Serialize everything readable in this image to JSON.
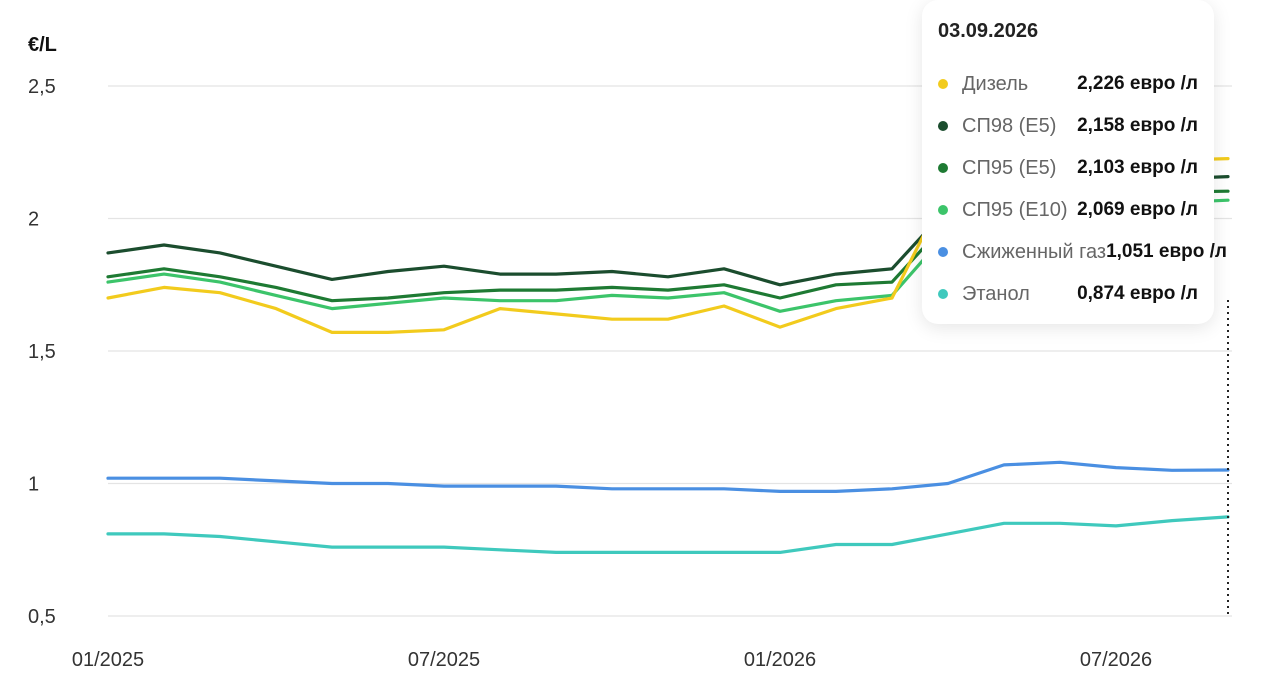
{
  "chart_data": {
    "type": "line",
    "unit_label": "€/L",
    "y_ticks": [
      "2,5",
      "2",
      "1,5",
      "1",
      "0,5"
    ],
    "ylim": [
      0.5,
      2.5
    ],
    "x_ticks": [
      "01/2025",
      "07/2025",
      "01/2026",
      "07/2026"
    ],
    "x": [
      "2025-01",
      "2025-02",
      "2025-03",
      "2025-04",
      "2025-05",
      "2025-06",
      "2025-07",
      "2025-08",
      "2025-09",
      "2025-10",
      "2025-11",
      "2025-12",
      "2026-01",
      "2026-02",
      "2026-03",
      "2026-04",
      "2026-05",
      "2026-06",
      "2026-07",
      "2026-08",
      "2026-09"
    ],
    "grid": true,
    "series": [
      {
        "name": "Дизель",
        "color": "#f2cb1d",
        "values": [
          1.7,
          1.74,
          1.72,
          1.66,
          1.57,
          1.57,
          1.58,
          1.66,
          1.64,
          1.62,
          1.62,
          1.67,
          1.59,
          1.66,
          1.7,
          2.12,
          2.18,
          2.2,
          2.21,
          2.22,
          2.226
        ]
      },
      {
        "name": "СП98 (E5)",
        "color": "#1b4d2e",
        "values": [
          1.87,
          1.9,
          1.87,
          1.82,
          1.77,
          1.8,
          1.82,
          1.79,
          1.79,
          1.8,
          1.78,
          1.81,
          1.75,
          1.79,
          1.81,
          2.04,
          2.1,
          2.13,
          2.14,
          2.15,
          2.158
        ]
      },
      {
        "name": "СП95 (E5)",
        "color": "#1e7a33",
        "values": [
          1.78,
          1.81,
          1.78,
          1.74,
          1.69,
          1.7,
          1.72,
          1.73,
          1.73,
          1.74,
          1.73,
          1.75,
          1.7,
          1.75,
          1.76,
          1.99,
          2.05,
          2.08,
          2.09,
          2.1,
          2.103
        ]
      },
      {
        "name": "СП95 (E10)",
        "color": "#3cc46a",
        "values": [
          1.76,
          1.79,
          1.76,
          1.71,
          1.66,
          1.68,
          1.7,
          1.69,
          1.69,
          1.71,
          1.7,
          1.72,
          1.65,
          1.69,
          1.71,
          1.95,
          2.01,
          2.04,
          2.05,
          2.06,
          2.069
        ]
      },
      {
        "name": "Сжиженный газ",
        "color": "#4a8fe2",
        "values": [
          1.02,
          1.02,
          1.02,
          1.01,
          1.0,
          1.0,
          0.99,
          0.99,
          0.99,
          0.98,
          0.98,
          0.98,
          0.97,
          0.97,
          0.98,
          1.0,
          1.07,
          1.08,
          1.06,
          1.05,
          1.051
        ]
      },
      {
        "name": "Этанол",
        "color": "#3fc9bd",
        "values": [
          0.81,
          0.81,
          0.8,
          0.78,
          0.76,
          0.76,
          0.76,
          0.75,
          0.74,
          0.74,
          0.74,
          0.74,
          0.74,
          0.77,
          0.77,
          0.81,
          0.85,
          0.85,
          0.84,
          0.86,
          0.874
        ]
      }
    ],
    "tooltip": {
      "date": "03.09.2026",
      "rows": [
        {
          "name": "Дизель",
          "value": "2,226 евро /л",
          "color": "#f2cb1d"
        },
        {
          "name": "СП98 (E5)",
          "value": "2,158 евро /л",
          "color": "#1b4d2e"
        },
        {
          "name": "СП95 (E5)",
          "value": "2,103 евро /л",
          "color": "#1e7a33"
        },
        {
          "name": "СП95 (E10)",
          "value": "2,069 евро /л",
          "color": "#3cc46a"
        },
        {
          "name": "Сжиженный газ",
          "value": "1,051 евро /л",
          "color": "#4a8fe2"
        },
        {
          "name": "Этанол",
          "value": "0,874 евро /л",
          "color": "#3fc9bd"
        }
      ]
    }
  }
}
